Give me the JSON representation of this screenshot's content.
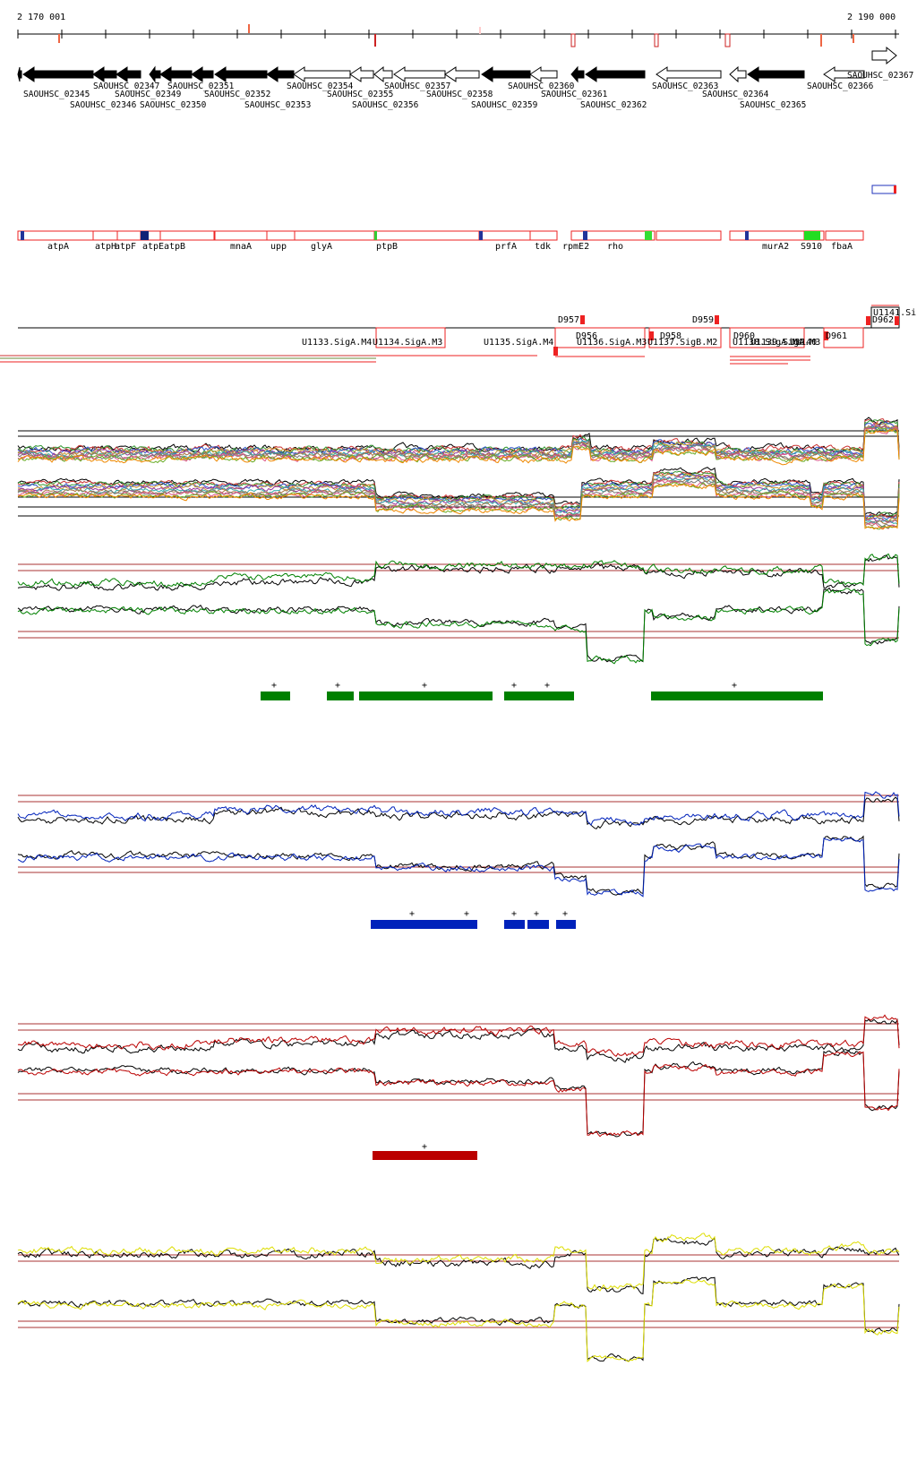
{
  "ruler": {
    "start_label": "2 170 001",
    "end_label": "2 190 000"
  },
  "genes_top": [
    "SAOUHSC_02345",
    "SAOUHSC_02346",
    "SAOUHSC_02347",
    "SAOUHSC_02349",
    "SAOUHSC_02350",
    "SAOUHSC_02351",
    "SAOUHSC_02352",
    "SAOUHSC_02353",
    "SAOUHSC_02354",
    "SAOUHSC_02355",
    "SAOUHSC_02356",
    "SAOUHSC_02357",
    "SAOUHSC_02358",
    "SAOUHSC_02359",
    "SAOUHSC_02360",
    "SAOUHSC_02361",
    "SAOUHSC_02362",
    "SAOUHSC_02363",
    "SAOUHSC_02364",
    "SAOUHSC_02365",
    "SAOUHSC_02366",
    "SAOUHSC_02367"
  ],
  "genes_named": [
    "atpA",
    "atpH",
    "atpF",
    "atpE",
    "atpB",
    "mnaA",
    "upp",
    "glyA",
    "ptpB",
    "prfA",
    "tdk",
    "rpmE2",
    "rho",
    "murA2",
    "S910",
    "fbaA"
  ],
  "segments_D": [
    "D957",
    "D959",
    "D956",
    "D958",
    "D960",
    "D961",
    "D962"
  ],
  "segments_U": [
    "U1133.SigA.M4",
    "U1134.SigA.M3",
    "U1135.SigA.M4",
    "U1136.SigA.M3",
    "U1137.SigB.M2",
    "U1138.SigA.M4",
    "U1139.SigA.M3",
    "U1140",
    "U1141.Si"
  ],
  "colors": {
    "green": "#008000",
    "blue": "#0022bb",
    "red": "#bb0000",
    "yellow": "#dddd00",
    "ref_line": "#aa3333",
    "gene_box": "#ee2222"
  },
  "marker": "+"
}
